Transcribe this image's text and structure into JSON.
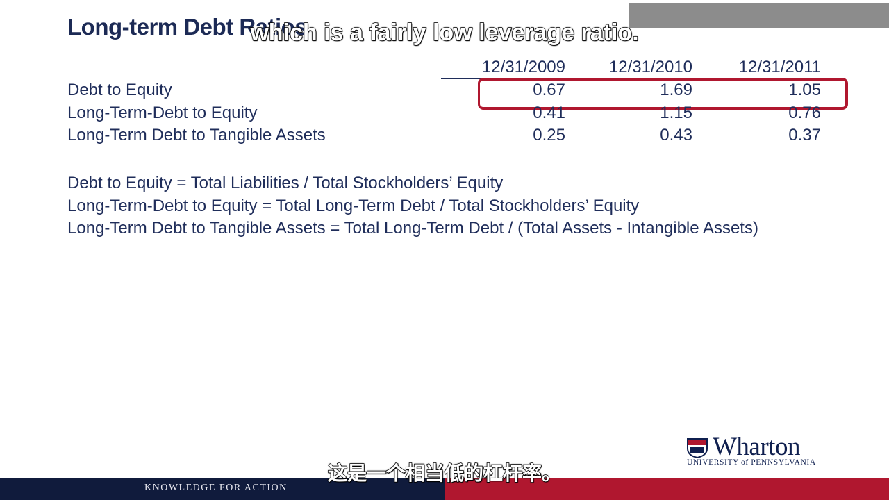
{
  "header": {
    "title": "Long-term Debt Ratios"
  },
  "subtitles": {
    "english": "which is a fairly low leverage ratio.",
    "chinese": "这是一个相当低的杠杆率。"
  },
  "table": {
    "columns": [
      "12/31/2009",
      "12/31/2010",
      "12/31/2011"
    ],
    "rows": [
      [
        "Debt to Equity",
        "0.67",
        "1.69",
        "1.05"
      ],
      [
        "Long-Term-Debt to Equity",
        "0.41",
        "1.15",
        "0.76"
      ],
      [
        "Long-Term Debt to Tangible Assets",
        "0.25",
        "0.43",
        "0.37"
      ]
    ]
  },
  "formulas": [
    "Debt to Equity = Total Liabilities / Total Stockholders’ Equity",
    "Long-Term-Debt to Equity = Total Long-Term Debt / Total Stockholders’ Equity",
    "Long-Term Debt to Tangible Assets = Total Long-Term Debt / (Total Assets - Intangible Assets)"
  ],
  "logo": {
    "name": "Wharton",
    "university": "UNIVERSITY of PENNSYLVANIA"
  },
  "footer": {
    "tagline": "KNOWLEDGE FOR ACTION"
  }
}
